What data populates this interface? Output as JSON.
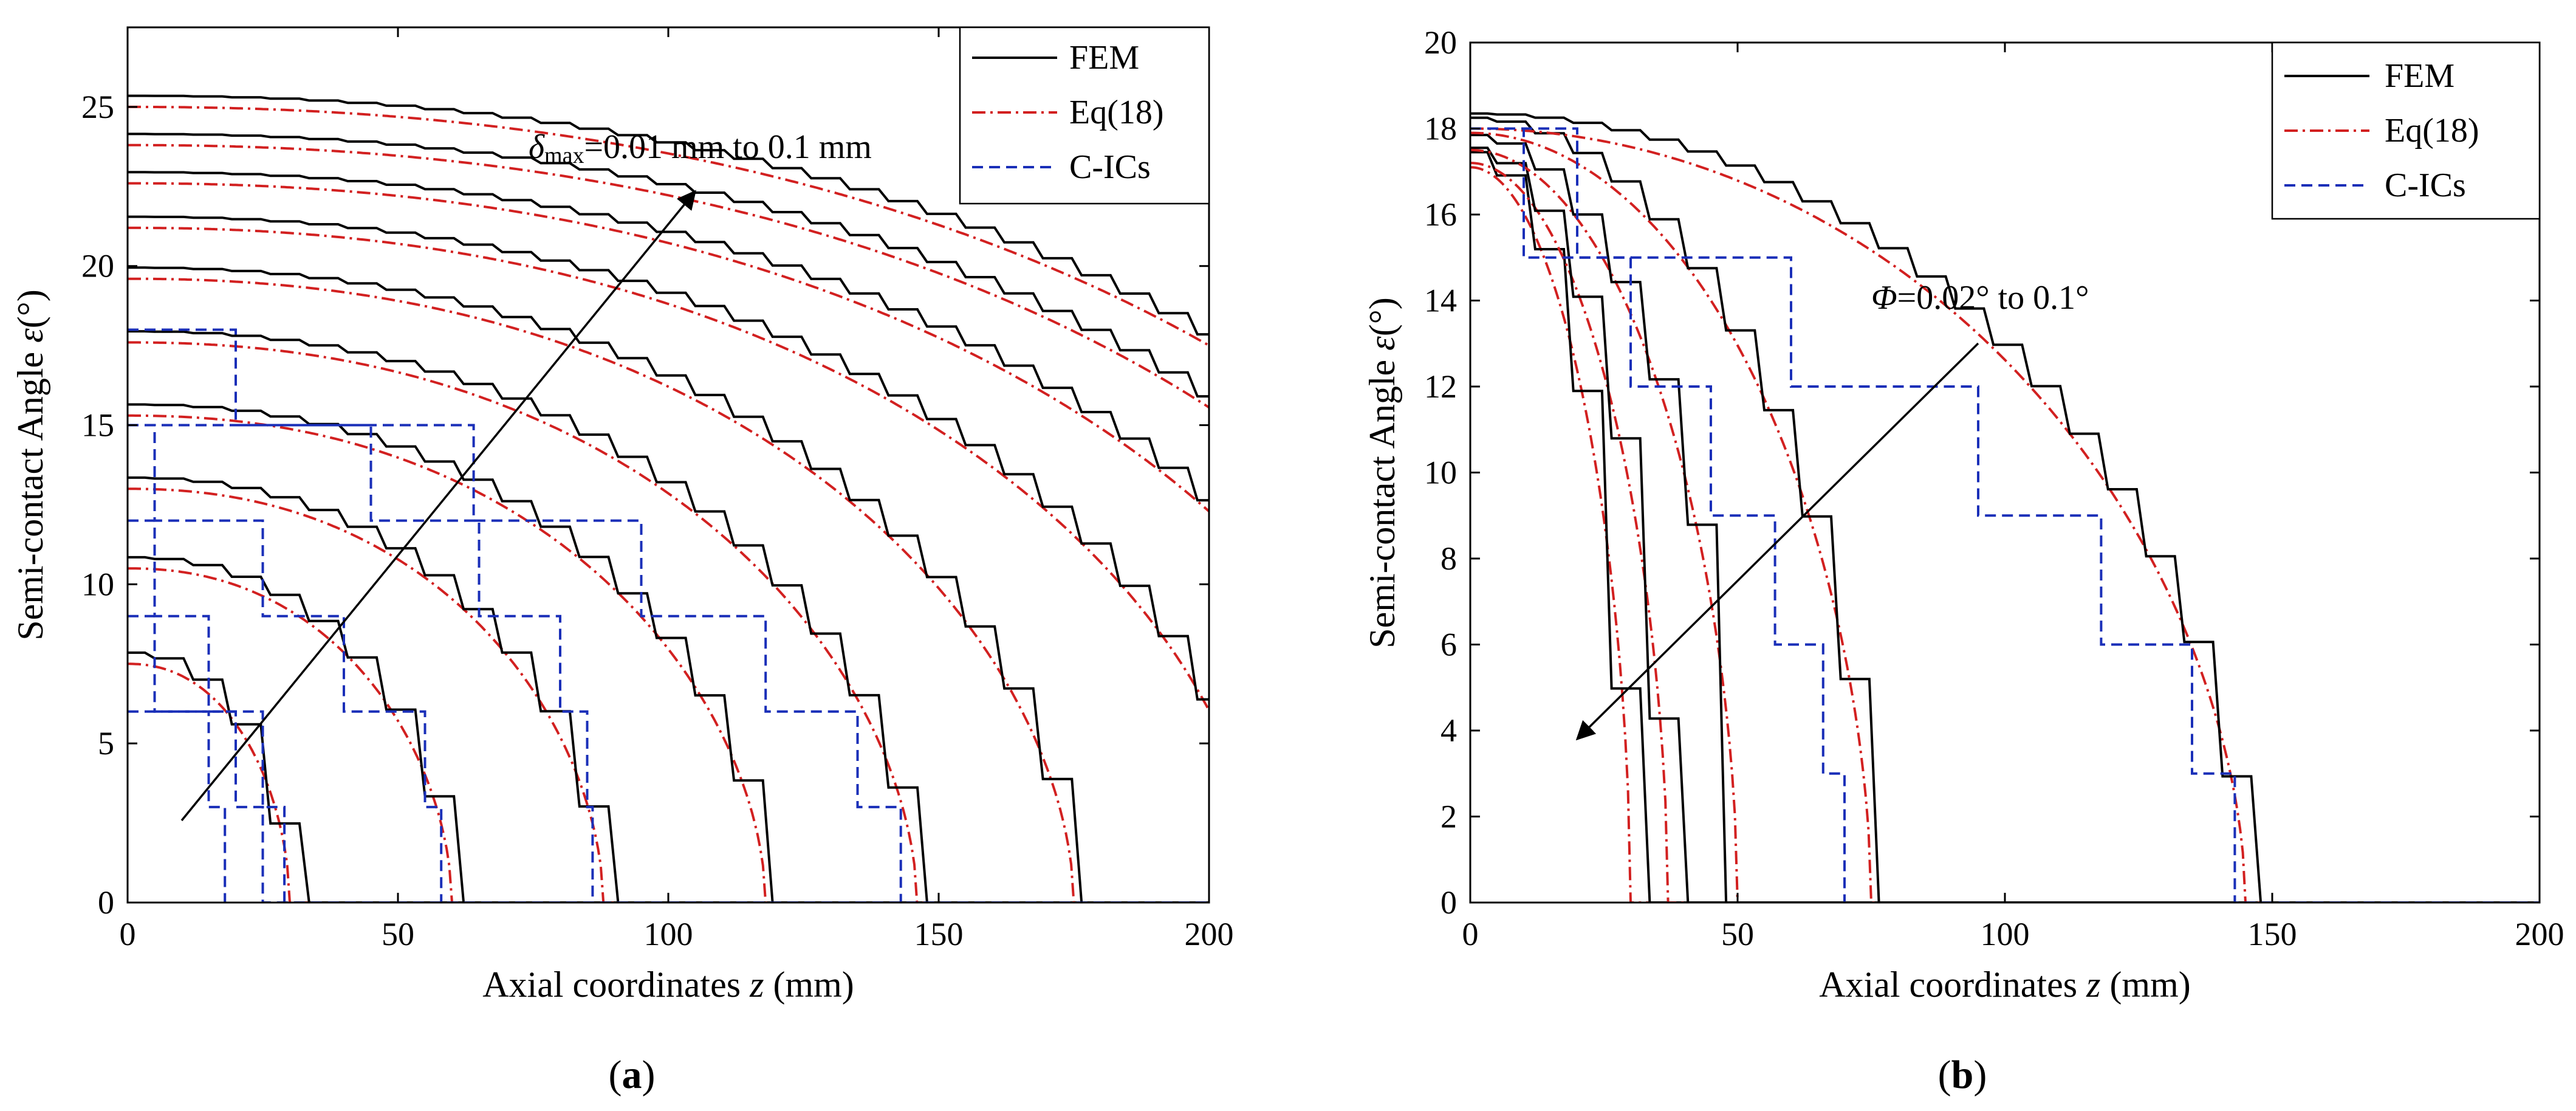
{
  "chart_data": [
    {
      "type": "line",
      "panel_label": "a",
      "xlabel": "Axial coordinates",
      "xlabel_var": "z",
      "xlabel_unit": "(mm)",
      "ylabel": "Semi-contact Angle",
      "ylabel_var": "ε",
      "ylabel_unit": "(°)",
      "xlim": [
        0,
        200
      ],
      "ylim": [
        0,
        27.5
      ],
      "xticks": [
        0,
        50,
        100,
        150,
        200
      ],
      "yticks": [
        0,
        5,
        10,
        15,
        20,
        25
      ],
      "legend": {
        "placement": "top-right",
        "entries": [
          {
            "label": "FEM",
            "color": "#000000",
            "style": "solid"
          },
          {
            "label": "Eq(18)",
            "color": "#d22020",
            "style": "dashdot"
          },
          {
            "label": "C-ICs",
            "color": "#1a2fb8",
            "style": "dashed"
          }
        ]
      },
      "annotation": {
        "symbol": "δ",
        "subscript": "max",
        "text": "=0.01 mm to 0.1 mm",
        "arrow_from": [
          10,
          2.5
        ],
        "arrow_to": [
          105,
          22.5
        ]
      },
      "curve_params": {
        "y0": [
          7.5,
          10.5,
          13,
          15.3,
          17.6,
          19.6,
          21.2,
          22.6,
          23.8,
          25.0
        ],
        "x_end": [
          30,
          60,
          88,
          118,
          146,
          175,
          210,
          240,
          265,
          280
        ],
        "exponent": 2.2
      },
      "cics_steps": [
        [
          [
            0,
            6
          ],
          [
            20,
            6
          ],
          [
            20,
            3
          ],
          [
            25,
            3
          ],
          [
            25,
            0
          ],
          [
            200,
            0
          ]
        ],
        [
          [
            0,
            9
          ],
          [
            5,
            9
          ],
          [
            5,
            6
          ],
          [
            15,
            6
          ],
          [
            15,
            3
          ],
          [
            18,
            3
          ],
          [
            18,
            0
          ]
        ],
        [
          [
            0,
            12
          ],
          [
            5,
            12
          ],
          [
            5,
            9
          ],
          [
            15,
            9
          ],
          [
            15,
            6
          ],
          [
            25,
            6
          ],
          [
            25,
            3
          ],
          [
            29,
            3
          ],
          [
            29,
            0
          ]
        ],
        [
          [
            0,
            15
          ],
          [
            5,
            15
          ],
          [
            5,
            12
          ],
          [
            25,
            12
          ],
          [
            25,
            9
          ],
          [
            40,
            9
          ],
          [
            40,
            6
          ],
          [
            55,
            6
          ],
          [
            55,
            3
          ],
          [
            58,
            3
          ],
          [
            58,
            0
          ]
        ],
        [
          [
            0,
            18
          ],
          [
            20,
            18
          ],
          [
            20,
            15
          ],
          [
            45,
            15
          ],
          [
            45,
            12
          ],
          [
            65,
            12
          ],
          [
            65,
            9
          ],
          [
            80,
            9
          ],
          [
            80,
            6
          ],
          [
            85,
            6
          ],
          [
            85,
            3
          ],
          [
            86,
            3
          ],
          [
            86,
            0
          ]
        ],
        [
          [
            0,
            15
          ],
          [
            64,
            15
          ],
          [
            64,
            12
          ],
          [
            95,
            12
          ],
          [
            95,
            9
          ],
          [
            118,
            9
          ],
          [
            118,
            6
          ],
          [
            135,
            6
          ],
          [
            135,
            3
          ],
          [
            143,
            3
          ],
          [
            143,
            0
          ]
        ]
      ]
    },
    {
      "type": "line",
      "panel_label": "b",
      "xlabel": "Axial coordinates",
      "xlabel_var": "z",
      "xlabel_unit": "(mm)",
      "ylabel": "Semi-contact Angle",
      "ylabel_var": "ε",
      "ylabel_unit": "(°)",
      "xlim": [
        0,
        200
      ],
      "ylim": [
        0,
        20
      ],
      "xticks": [
        0,
        50,
        100,
        150,
        200
      ],
      "yticks": [
        0,
        2,
        4,
        6,
        8,
        10,
        12,
        14,
        16,
        18,
        20
      ],
      "legend": {
        "placement": "top-right",
        "entries": [
          {
            "label": "FEM",
            "color": "#000000",
            "style": "solid"
          },
          {
            "label": "Eq(18)",
            "color": "#d22020",
            "style": "dashdot"
          },
          {
            "label": "C-ICs",
            "color": "#1a2fb8",
            "style": "dashed"
          }
        ]
      },
      "annotation": {
        "symbol": "Φ",
        "text": "=0.02° to 0.1°",
        "arrow_from": [
          95,
          13
        ],
        "arrow_to": [
          20,
          3.8
        ]
      },
      "curve_params": {
        "y0": [
          17.1,
          17.2,
          17.5,
          17.9,
          18.0
        ],
        "x_end": [
          30,
          37,
          50,
          75,
          145
        ],
        "exponent": 2.0
      },
      "cics_steps": [
        [
          [
            0,
            18
          ],
          [
            20,
            18
          ],
          [
            20,
            15
          ],
          [
            60,
            15
          ],
          [
            60,
            12
          ],
          [
            95,
            12
          ],
          [
            95,
            9
          ],
          [
            118,
            9
          ],
          [
            118,
            6
          ],
          [
            135,
            6
          ],
          [
            135,
            3
          ],
          [
            143,
            3
          ],
          [
            143,
            0
          ],
          [
            200,
            0
          ]
        ],
        [
          [
            0,
            18
          ],
          [
            10,
            18
          ],
          [
            10,
            15
          ],
          [
            30,
            15
          ],
          [
            30,
            12
          ],
          [
            45,
            12
          ],
          [
            45,
            9
          ],
          [
            57,
            9
          ],
          [
            57,
            6
          ],
          [
            66,
            6
          ],
          [
            66,
            3
          ],
          [
            70,
            3
          ],
          [
            70,
            0
          ]
        ]
      ]
    }
  ]
}
